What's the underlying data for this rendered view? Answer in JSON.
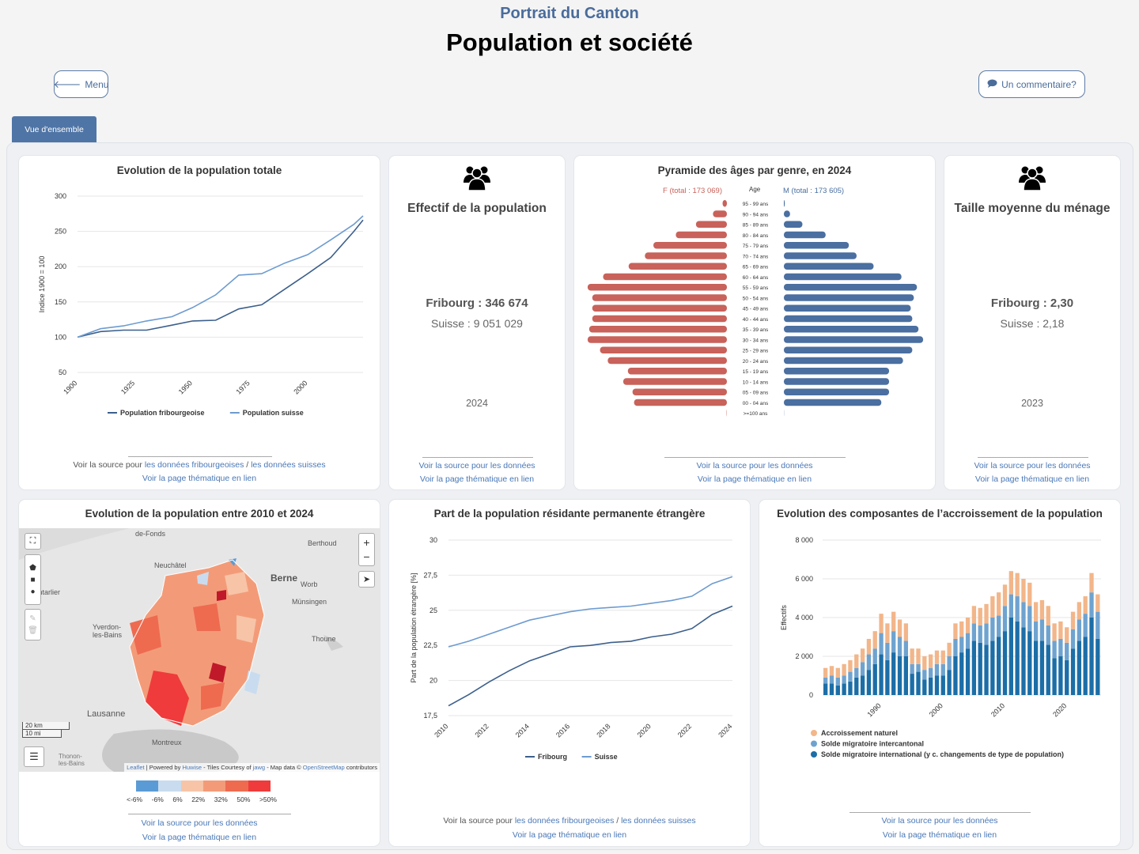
{
  "header": {
    "supertitle": "Portrait du Canton",
    "title": "Population et société"
  },
  "buttons": {
    "menu": "Menu",
    "comment": "Un commentaire?"
  },
  "tabs": [
    {
      "label": "Vue d'ensemble"
    }
  ],
  "common": {
    "src_prefix": "Voir la source pour",
    "src_data": "les données",
    "src_fr": "les données fribourgeoises",
    "src_slash": "/",
    "src_ch": "les données suisses",
    "page_prefix": "Voir la page thématique",
    "page_link": "en lien"
  },
  "cards": {
    "evolution": {
      "title": "Evolution de la population totale"
    },
    "effectif": {
      "title": "Effectif de la population",
      "fribourg": "Fribourg : 346 674",
      "suisse": "Suisse : 9 051 029",
      "year": "2024"
    },
    "pyramide": {
      "title": "Pyramide des âges par genre, en 2024",
      "f_label": "F (total : 173 069)",
      "age_label": "Age",
      "m_label": "M (total : 173 605)"
    },
    "menage": {
      "title": "Taille moyenne du ménage",
      "fribourg": "Fribourg : 2,30",
      "suisse": "Suisse : 2,18",
      "year": "2023"
    },
    "carte": {
      "title": "Evolution de la population entre 2010 et 2024",
      "places": [
        "de-Fonds",
        "Berthoud",
        "Neuchâtel",
        "Berne",
        "Worb",
        "Pontarlier",
        "Münsingen",
        "Yverdon-les-Bains",
        "Thoune",
        "Lausanne",
        "Montreux",
        "Thonon-les-Bains"
      ],
      "scale": [
        "20 km",
        "10 mi"
      ],
      "attribution": {
        "leaflet": "Leaflet",
        "powered": "| Powered by",
        "huwise": "Huwise",
        "tiles": "- Tiles Courtesy of",
        "jawg": "jawg",
        "mapdata": "- Map data ©",
        "osm": "OpenStreetMap",
        "contrib": "contributors"
      },
      "legend_labels": [
        "<-6%",
        "-6%",
        "6%",
        "22%",
        "32%",
        "50%",
        ">50%"
      ],
      "legend_colors": [
        "#5b9bd5",
        "#c9dcef",
        "#f7c4a8",
        "#f39b78",
        "#ee6b50",
        "#ef3b3b"
      ]
    },
    "etrangere": {
      "title": "Part de la population résidante permanente étrangère"
    },
    "composantes": {
      "title": "Evolution des composantes de l’accroissement de la population"
    }
  },
  "chart_data": [
    {
      "type": "line",
      "title": "Evolution de la population totale",
      "ylabel": "Indice 1900 = 100",
      "ylim": [
        50,
        300
      ],
      "yticks": [
        50,
        100,
        150,
        200,
        250,
        300
      ],
      "xticks": [
        1900,
        1925,
        1950,
        1975,
        2000
      ],
      "grid": true,
      "legend": "bottom",
      "series": [
        {
          "name": "Population fribourgeoise",
          "color": "#3c5f8c",
          "x": [
            1900,
            1910,
            1920,
            1930,
            1941,
            1950,
            1960,
            1970,
            1980,
            1990,
            2000,
            2010,
            2020,
            2024
          ],
          "y": [
            100,
            108,
            110,
            110,
            117,
            123,
            124,
            140,
            146,
            168,
            190,
            213,
            250,
            266
          ]
        },
        {
          "name": "Population suisse",
          "color": "#6d9bd0",
          "x": [
            1900,
            1910,
            1920,
            1930,
            1941,
            1950,
            1960,
            1970,
            1980,
            1990,
            2000,
            2010,
            2020,
            2024
          ],
          "y": [
            100,
            112,
            116,
            123,
            129,
            142,
            160,
            188,
            190,
            205,
            217,
            238,
            260,
            272
          ]
        }
      ]
    },
    {
      "type": "bar",
      "title": "Pyramide des âges par genre, en 2024",
      "categories": [
        "95 - 99 ans",
        "90 - 94 ans",
        "85 - 89 ans",
        "80 - 84 ans",
        "75 - 79 ans",
        "70 - 74 ans",
        "65 - 69 ans",
        "60 - 64 ans",
        "55 - 59 ans",
        "50 - 54 ans",
        "45 - 49 ans",
        "40 - 44 ans",
        "35 - 39 ans",
        "30 - 34 ans",
        "25 - 29 ans",
        "20 - 24 ans",
        "15 - 19 ans",
        "10 - 14 ans",
        "05 - 09 ans",
        "00 - 04 ans",
        ">=100 ans"
      ],
      "series": [
        {
          "name": "F (total : 173 069)",
          "color": "#c8625a",
          "values": [
            280,
            900,
            2000,
            3300,
            4750,
            5300,
            6350,
            8000,
            9000,
            8700,
            8700,
            8700,
            8900,
            9000,
            8200,
            7700,
            6400,
            6700,
            6100,
            6000,
            20
          ]
        },
        {
          "name": "M (total : 173 605)",
          "color": "#4a6fa0",
          "values": [
            60,
            400,
            1200,
            2700,
            4200,
            4700,
            5800,
            7600,
            8600,
            8400,
            8200,
            8300,
            8700,
            9000,
            8300,
            7700,
            6800,
            6800,
            6800,
            6300,
            10
          ]
        }
      ]
    },
    {
      "type": "line",
      "title": "Part de la population résidante permanente étrangère",
      "ylabel": "Part de la population étrangère [%]",
      "ylim": [
        17.5,
        30
      ],
      "yticks": [
        17.5,
        20,
        22.5,
        25,
        27.5,
        30
      ],
      "xticks": [
        2010,
        2012,
        2014,
        2016,
        2018,
        2020,
        2022,
        2024
      ],
      "legend": "bottom",
      "series": [
        {
          "name": "Fribourg",
          "color": "#3c5f8c",
          "x": [
            2010,
            2011,
            2012,
            2013,
            2014,
            2015,
            2016,
            2017,
            2018,
            2019,
            2020,
            2021,
            2022,
            2023,
            2024
          ],
          "y": [
            18.2,
            19.0,
            19.9,
            20.7,
            21.4,
            21.9,
            22.4,
            22.5,
            22.7,
            22.8,
            23.1,
            23.3,
            23.7,
            24.7,
            25.3
          ]
        },
        {
          "name": "Suisse",
          "color": "#6d9bd0",
          "x": [
            2010,
            2011,
            2012,
            2013,
            2014,
            2015,
            2016,
            2017,
            2018,
            2019,
            2020,
            2021,
            2022,
            2023,
            2024
          ],
          "y": [
            22.4,
            22.8,
            23.3,
            23.8,
            24.3,
            24.6,
            24.9,
            25.1,
            25.2,
            25.3,
            25.5,
            25.7,
            26.0,
            26.9,
            27.4
          ]
        }
      ]
    },
    {
      "type": "bar",
      "stacked": true,
      "title": "Evolution des composantes de l’accroissement de la population",
      "ylabel": "Effectifs",
      "ylim": [
        0,
        8000
      ],
      "yticks": [
        0,
        2000,
        4000,
        6000,
        8000
      ],
      "xticks": [
        1990,
        2000,
        2010,
        2020
      ],
      "legend": "bottom",
      "categories": [
        1981,
        1982,
        1983,
        1984,
        1985,
        1986,
        1987,
        1988,
        1989,
        1990,
        1991,
        1992,
        1993,
        1994,
        1995,
        1996,
        1997,
        1998,
        1999,
        2000,
        2001,
        2002,
        2003,
        2004,
        2005,
        2006,
        2007,
        2008,
        2009,
        2010,
        2011,
        2012,
        2013,
        2014,
        2015,
        2016,
        2017,
        2018,
        2019,
        2020,
        2021,
        2022,
        2023,
        2024,
        2025
      ],
      "series": [
        {
          "name": "Accroissement naturel",
          "color": "#f2b68a",
          "values": [
            500,
            500,
            500,
            600,
            600,
            700,
            700,
            800,
            900,
            1000,
            1000,
            1000,
            900,
            900,
            800,
            800,
            700,
            700,
            700,
            700,
            700,
            800,
            800,
            800,
            900,
            900,
            1000,
            1100,
            1200,
            1100,
            1200,
            1200,
            1200,
            1200,
            1000,
            1000,
            1000,
            900,
            900,
            800,
            900,
            900,
            900,
            1000,
            900
          ]
        },
        {
          "name": "Solde migratoire intercantonal",
          "color": "#6fa3cf",
          "values": [
            300,
            400,
            400,
            400,
            500,
            500,
            700,
            800,
            800,
            1100,
            900,
            1100,
            1000,
            800,
            500,
            400,
            500,
            500,
            600,
            600,
            700,
            900,
            800,
            800,
            900,
            900,
            1100,
            1200,
            1100,
            1300,
            1200,
            1300,
            1300,
            1300,
            1000,
            1100,
            1000,
            900,
            900,
            900,
            1000,
            1100,
            1200,
            1300,
            1400
          ]
        },
        {
          "name": "Solde migratoire international (y c. changements de type de population)",
          "color": "#1c6ea7",
          "values": [
            600,
            600,
            500,
            600,
            700,
            900,
            1000,
            1300,
            1600,
            2100,
            1800,
            2200,
            2000,
            2000,
            1100,
            1200,
            800,
            900,
            1000,
            1000,
            1300,
            2000,
            2200,
            2400,
            2800,
            2700,
            2600,
            2800,
            3000,
            3300,
            4000,
            3800,
            3500,
            3300,
            2800,
            2800,
            2600,
            1900,
            2000,
            1800,
            2400,
            2800,
            3000,
            4000,
            2900
          ]
        }
      ]
    }
  ]
}
